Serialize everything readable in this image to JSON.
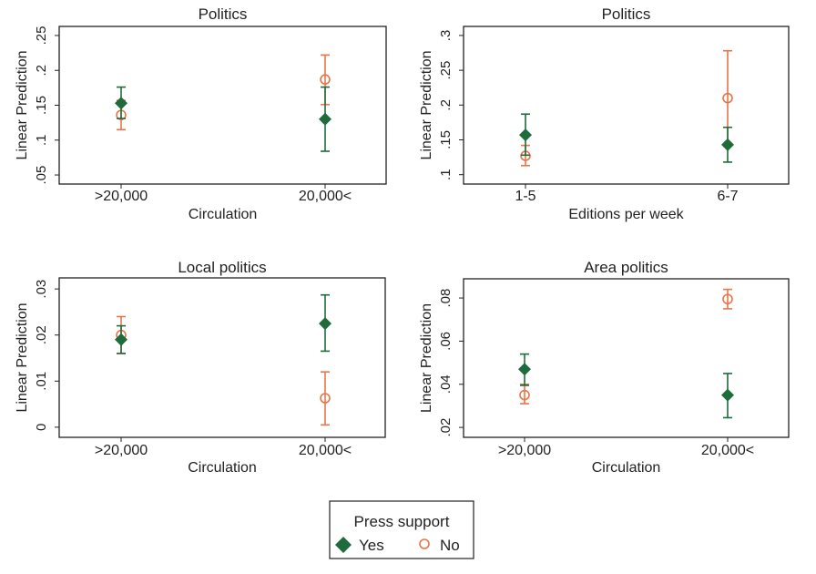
{
  "chart_data": [
    {
      "type": "scatter",
      "title": "Politics",
      "xlabel": "Circulation",
      "ylabel": "Linear Prediction",
      "categories": [
        ">20,000",
        "20,000<"
      ],
      "yticks": [
        0.05,
        0.1,
        0.15,
        0.2,
        0.25
      ],
      "ytick_labels": [
        ".05",
        ".1",
        ".15",
        ".2",
        ".25"
      ],
      "ylim": [
        0.037,
        0.263
      ],
      "grid": false,
      "series": [
        {
          "name": "Yes",
          "values": [
            0.153,
            0.13
          ],
          "ci_low": [
            0.131,
            0.084
          ],
          "ci_high": [
            0.176,
            0.176
          ]
        },
        {
          "name": "No",
          "values": [
            0.136,
            0.187
          ],
          "ci_low": [
            0.115,
            0.151
          ],
          "ci_high": [
            0.157,
            0.222
          ]
        }
      ]
    },
    {
      "type": "scatter",
      "title": "Politics",
      "xlabel": "Editions per week",
      "ylabel": "Linear Prediction",
      "categories": [
        "1-5",
        "6-7"
      ],
      "yticks": [
        0.1,
        0.15,
        0.2,
        0.25,
        0.3
      ],
      "ytick_labels": [
        ".1",
        ".15",
        ".2",
        ".25",
        ".3"
      ],
      "ylim": [
        0.0865,
        0.313
      ],
      "grid": false,
      "series": [
        {
          "name": "Yes",
          "values": [
            0.157,
            0.143
          ],
          "ci_low": [
            0.128,
            0.118
          ],
          "ci_high": [
            0.187,
            0.168
          ]
        },
        {
          "name": "No",
          "values": [
            0.127,
            0.21
          ],
          "ci_low": [
            0.113,
            0.141
          ],
          "ci_high": [
            0.142,
            0.278
          ]
        }
      ]
    },
    {
      "type": "scatter",
      "title": "Local politics",
      "xlabel": "Circulation",
      "ylabel": "Linear Prediction",
      "categories": [
        ">20,000",
        "20,000<"
      ],
      "yticks": [
        0,
        0.01,
        0.02,
        0.03
      ],
      "ytick_labels": [
        "0",
        ".01",
        ".02",
        ".03"
      ],
      "ylim": [
        -0.0022,
        0.0324
      ],
      "grid": false,
      "series": [
        {
          "name": "Yes",
          "values": [
            0.019,
            0.0225
          ],
          "ci_low": [
            0.016,
            0.0165
          ],
          "ci_high": [
            0.022,
            0.0287
          ]
        },
        {
          "name": "No",
          "values": [
            0.02,
            0.0063
          ],
          "ci_low": [
            0.016,
            0.0005
          ],
          "ci_high": [
            0.024,
            0.012
          ]
        }
      ]
    },
    {
      "type": "scatter",
      "title": "Area politics",
      "xlabel": "Circulation",
      "ylabel": "Linear Prediction",
      "categories": [
        ">20,000",
        "20,000<"
      ],
      "yticks": [
        0.02,
        0.04,
        0.06,
        0.08
      ],
      "ytick_labels": [
        ".02",
        ".04",
        ".06",
        ".08"
      ],
      "ylim": [
        0.0154,
        0.0889
      ],
      "grid": false,
      "series": [
        {
          "name": "Yes",
          "values": [
            0.047,
            0.035
          ],
          "ci_low": [
            0.0395,
            0.0245
          ],
          "ci_high": [
            0.054,
            0.045
          ]
        },
        {
          "name": "No",
          "values": [
            0.035,
            0.0795
          ],
          "ci_low": [
            0.031,
            0.075
          ],
          "ci_high": [
            0.04,
            0.084
          ]
        }
      ]
    }
  ],
  "legend": {
    "title": "Press support",
    "placement": "bottom",
    "items": [
      {
        "label": "Yes",
        "marker": "filled-diamond",
        "color": "#1e6b3c"
      },
      {
        "label": "No",
        "marker": "hollow-circle",
        "color": "#e8754a"
      }
    ]
  },
  "colors": {
    "yes": "#1e6b3c",
    "no": "#e8754a",
    "axis": "#222222"
  }
}
